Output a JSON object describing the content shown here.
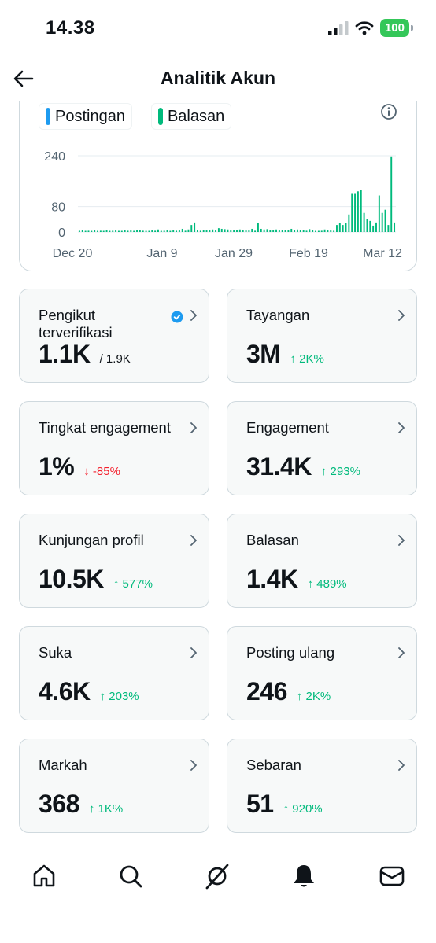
{
  "status": {
    "time": "14.38",
    "battery": "100"
  },
  "header": {
    "title": "Analitik Akun"
  },
  "legend": [
    {
      "label": "Postingan",
      "color": "#1d9bf0"
    },
    {
      "label": "Balasan",
      "color": "#00ba7c"
    }
  ],
  "chart_data": {
    "type": "bar",
    "x_ticks": [
      "Dec 20",
      "Jan 9",
      "Jan 29",
      "Feb 19",
      "Mar 12"
    ],
    "y_ticks": [
      0,
      80,
      240
    ],
    "ylim": [
      0,
      240
    ],
    "grid": true,
    "series": [
      {
        "name": "Balasan",
        "color": "#00ba7c",
        "values": [
          4,
          5,
          3,
          4,
          2,
          6,
          3,
          4,
          2,
          5,
          3,
          4,
          6,
          2,
          3,
          5,
          4,
          6,
          3,
          5,
          7,
          4,
          3,
          2,
          5,
          4,
          8,
          3,
          4,
          5,
          3,
          6,
          4,
          5,
          10,
          4,
          8,
          22,
          30,
          5,
          4,
          6,
          7,
          5,
          8,
          6,
          12,
          10,
          9,
          8,
          5,
          7,
          6,
          8,
          5,
          5,
          6,
          10,
          4,
          28,
          10,
          8,
          9,
          7,
          6,
          8,
          7,
          5,
          6,
          5,
          10,
          6,
          8,
          5,
          7,
          4,
          9,
          6,
          3,
          2,
          4,
          8,
          5,
          6,
          4,
          22,
          28,
          22,
          28,
          55,
          120,
          120,
          128,
          132,
          60,
          40,
          35,
          20,
          30,
          115,
          60,
          70,
          22,
          238,
          30
        ]
      }
    ]
  },
  "stats": [
    {
      "label": "Pengikut terverifikasi",
      "value": "1.1K",
      "sub": "/ 1.9K",
      "change": "",
      "dir": "",
      "verified": true
    },
    {
      "label": "Tayangan",
      "value": "3M",
      "sub": "",
      "change": "↑ 2K%",
      "dir": "up"
    },
    {
      "label": "Tingkat engagement",
      "value": "1%",
      "sub": "",
      "change": "↓ -85%",
      "dir": "down"
    },
    {
      "label": "Engagement",
      "value": "31.4K",
      "sub": "",
      "change": "↑ 293%",
      "dir": "up"
    },
    {
      "label": "Kunjungan profil",
      "value": "10.5K",
      "sub": "",
      "change": "↑ 577%",
      "dir": "up"
    },
    {
      "label": "Balasan",
      "value": "1.4K",
      "sub": "",
      "change": "↑ 489%",
      "dir": "up"
    },
    {
      "label": "Suka",
      "value": "4.6K",
      "sub": "",
      "change": "↑ 203%",
      "dir": "up"
    },
    {
      "label": "Posting ulang",
      "value": "246",
      "sub": "",
      "change": "↑ 2K%",
      "dir": "up"
    },
    {
      "label": "Markah",
      "value": "368",
      "sub": "",
      "change": "↑ 1K%",
      "dir": "up"
    },
    {
      "label": "Sebaran",
      "value": "51",
      "sub": "",
      "change": "↑ 920%",
      "dir": "up"
    }
  ],
  "tabs": [
    {
      "icon": "home-icon"
    },
    {
      "icon": "search-icon"
    },
    {
      "icon": "grok-icon"
    },
    {
      "icon": "bell-icon"
    },
    {
      "icon": "mail-icon"
    }
  ]
}
